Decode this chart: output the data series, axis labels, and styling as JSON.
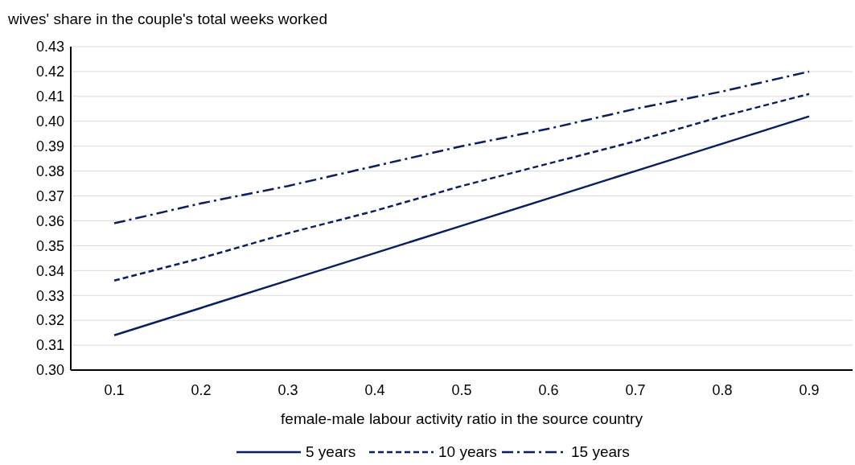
{
  "chart_data": {
    "type": "line",
    "ylabel": "wives' share in the couple's total weeks worked",
    "xlabel": "female-male labour activity ratio in the source country",
    "categories": [
      "0.1",
      "0.2",
      "0.3",
      "0.4",
      "0.5",
      "0.6",
      "0.7",
      "0.8",
      "0.9"
    ],
    "series": [
      {
        "name": "5 years",
        "color": "#0b1f5e",
        "line_style": "solid",
        "values": [
          0.314,
          0.325,
          0.336,
          0.347,
          0.358,
          0.369,
          0.38,
          0.391,
          0.402
        ]
      },
      {
        "name": "10 years",
        "color": "#0b1f5e",
        "line_style": "dashed",
        "values": [
          0.336,
          0.345,
          0.355,
          0.364,
          0.374,
          0.383,
          0.392,
          0.402,
          0.411
        ]
      },
      {
        "name": "15 years",
        "color": "#0b1f5e",
        "line_style": "dashdot",
        "values": [
          0.359,
          0.367,
          0.374,
          0.382,
          0.39,
          0.397,
          0.405,
          0.412,
          0.42
        ]
      }
    ],
    "ylim": [
      0.3,
      0.43
    ],
    "yticks": [
      {
        "value": 0.3,
        "label": "0.30"
      },
      0.31,
      0.32,
      0.33,
      0.34,
      0.35,
      0.36,
      0.37,
      0.38,
      0.39,
      {
        "value": 0.4,
        "label": "0.40"
      },
      0.41,
      0.42,
      0.43
    ],
    "grid": "y",
    "legend": "bottom"
  }
}
